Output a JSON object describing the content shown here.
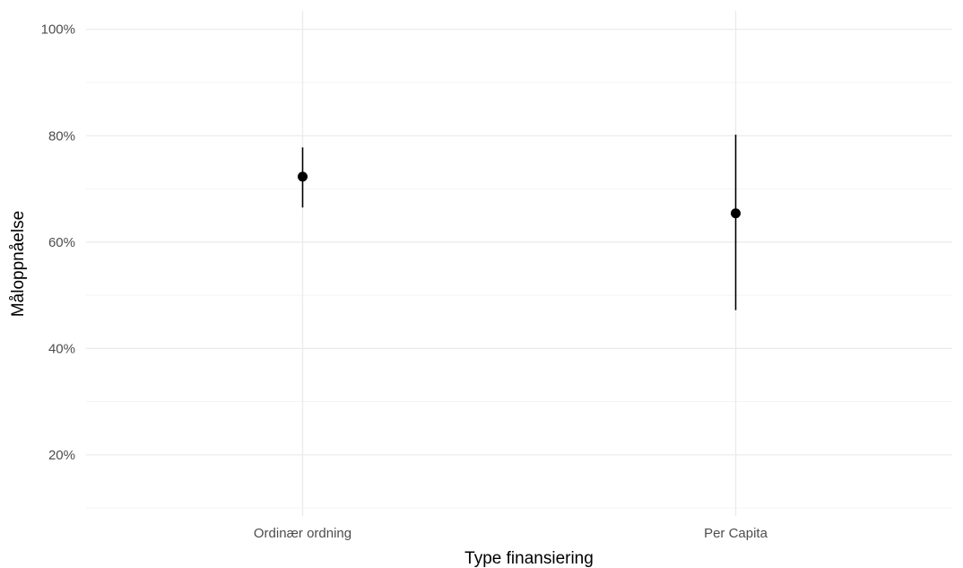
{
  "chart_data": {
    "type": "scatter",
    "subtype": "point-with-errorbars",
    "title": "",
    "xlabel": "Type finansiering",
    "ylabel": "Måloppnåelse",
    "categories": [
      "Ordinær ordning",
      "Per Capita"
    ],
    "points": [
      {
        "category": "Ordinær ordning",
        "y": 0.723,
        "ymin": 0.665,
        "ymax": 0.778
      },
      {
        "category": "Per Capita",
        "y": 0.654,
        "ymin": 0.472,
        "ymax": 0.802
      }
    ],
    "ylim": [
      0.085,
      1.035
    ],
    "yticks": [
      0.2,
      0.4,
      0.6,
      0.8,
      1.0
    ],
    "ytick_labels": [
      "20%",
      "40%",
      "60%",
      "80%",
      "100%"
    ],
    "grid": true,
    "legend": "none",
    "colors": {
      "point": "#000000",
      "grid": "#ebebeb",
      "text": "#4d4d4d"
    }
  }
}
